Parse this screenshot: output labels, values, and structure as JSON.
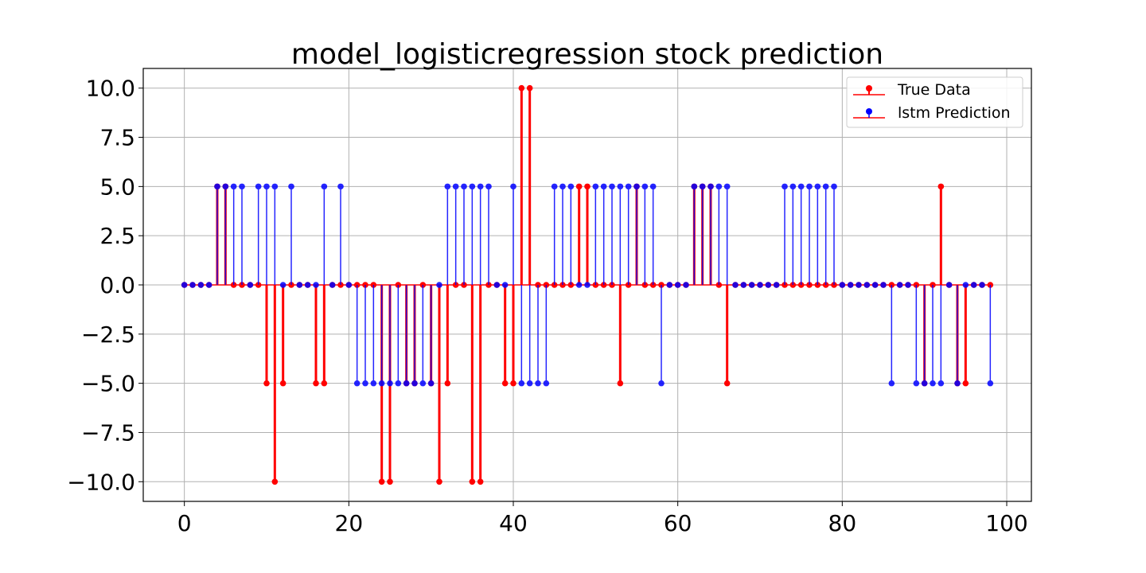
{
  "chart_data": {
    "type": "stem",
    "title": "model_logisticregression stock prediction",
    "xlabel": "",
    "ylabel": "",
    "xlim": [
      -5,
      103
    ],
    "ylim": [
      -11,
      11
    ],
    "xticks": [
      0,
      20,
      40,
      60,
      80,
      100
    ],
    "yticks": [
      10.0,
      7.5,
      5.0,
      2.5,
      0.0,
      -2.5,
      -5.0,
      -7.5,
      -10.0
    ],
    "xtick_labels": [
      "0",
      "20",
      "40",
      "60",
      "80",
      "100"
    ],
    "ytick_labels": [
      "10.0",
      "7.5",
      "5.0",
      "2.5",
      "0.0",
      "−2.5",
      "−5.0",
      "−7.5",
      "−10.0"
    ],
    "grid": true,
    "legend_position": "top-right",
    "x": [
      0,
      1,
      2,
      3,
      4,
      5,
      6,
      7,
      8,
      9,
      10,
      11,
      12,
      13,
      14,
      15,
      16,
      17,
      18,
      19,
      20,
      21,
      22,
      23,
      24,
      25,
      26,
      27,
      28,
      29,
      30,
      31,
      32,
      33,
      34,
      35,
      36,
      37,
      38,
      39,
      40,
      41,
      42,
      43,
      44,
      45,
      46,
      47,
      48,
      49,
      50,
      51,
      52,
      53,
      54,
      55,
      56,
      57,
      58,
      59,
      60,
      61,
      62,
      63,
      64,
      65,
      66,
      67,
      68,
      69,
      70,
      71,
      72,
      73,
      74,
      75,
      76,
      77,
      78,
      79,
      80,
      81,
      82,
      83,
      84,
      85,
      86,
      87,
      88,
      89,
      90,
      91,
      92,
      93,
      94,
      95,
      96,
      97,
      98
    ],
    "series": [
      {
        "name": "True Data",
        "color": "#ff0000",
        "values": [
          0,
          0,
          0,
          0,
          5,
          5,
          0,
          0,
          0,
          0,
          -5,
          -10,
          -5,
          0,
          0,
          0,
          -5,
          -5,
          0,
          0,
          0,
          0,
          0,
          0,
          -10,
          -10,
          0,
          -5,
          -5,
          0,
          -5,
          -10,
          -5,
          0,
          0,
          -10,
          -10,
          0,
          0,
          -5,
          -5,
          10,
          10,
          0,
          0,
          0,
          0,
          0,
          5,
          5,
          0,
          0,
          0,
          -5,
          0,
          5,
          0,
          0,
          0,
          0,
          0,
          0,
          5,
          5,
          5,
          0,
          -5,
          0,
          0,
          0,
          0,
          0,
          0,
          0,
          0,
          0,
          0,
          0,
          0,
          0,
          0,
          0,
          0,
          0,
          0,
          0,
          0,
          0,
          0,
          0,
          -5,
          0,
          5,
          0,
          -5,
          -5,
          0,
          0,
          0
        ]
      },
      {
        "name": "lstm Prediction",
        "color": "#0000ff",
        "values": [
          0,
          0,
          0,
          0,
          5,
          5,
          5,
          5,
          0,
          5,
          5,
          5,
          0,
          5,
          0,
          0,
          0,
          5,
          0,
          5,
          0,
          -5,
          -5,
          -5,
          -5,
          -5,
          -5,
          -5,
          -5,
          -5,
          -5,
          0,
          5,
          5,
          5,
          5,
          5,
          5,
          0,
          0,
          5,
          -5,
          -5,
          -5,
          -5,
          5,
          5,
          5,
          0,
          0,
          5,
          5,
          5,
          5,
          5,
          5,
          5,
          5,
          -5,
          0,
          0,
          0,
          5,
          5,
          5,
          5,
          5,
          0,
          0,
          0,
          0,
          0,
          0,
          5,
          5,
          5,
          5,
          5,
          5,
          5,
          0,
          0,
          0,
          0,
          0,
          0,
          -5,
          0,
          0,
          -5,
          -5,
          -5,
          -5,
          0,
          -5,
          0,
          0,
          0,
          -5
        ]
      }
    ]
  }
}
